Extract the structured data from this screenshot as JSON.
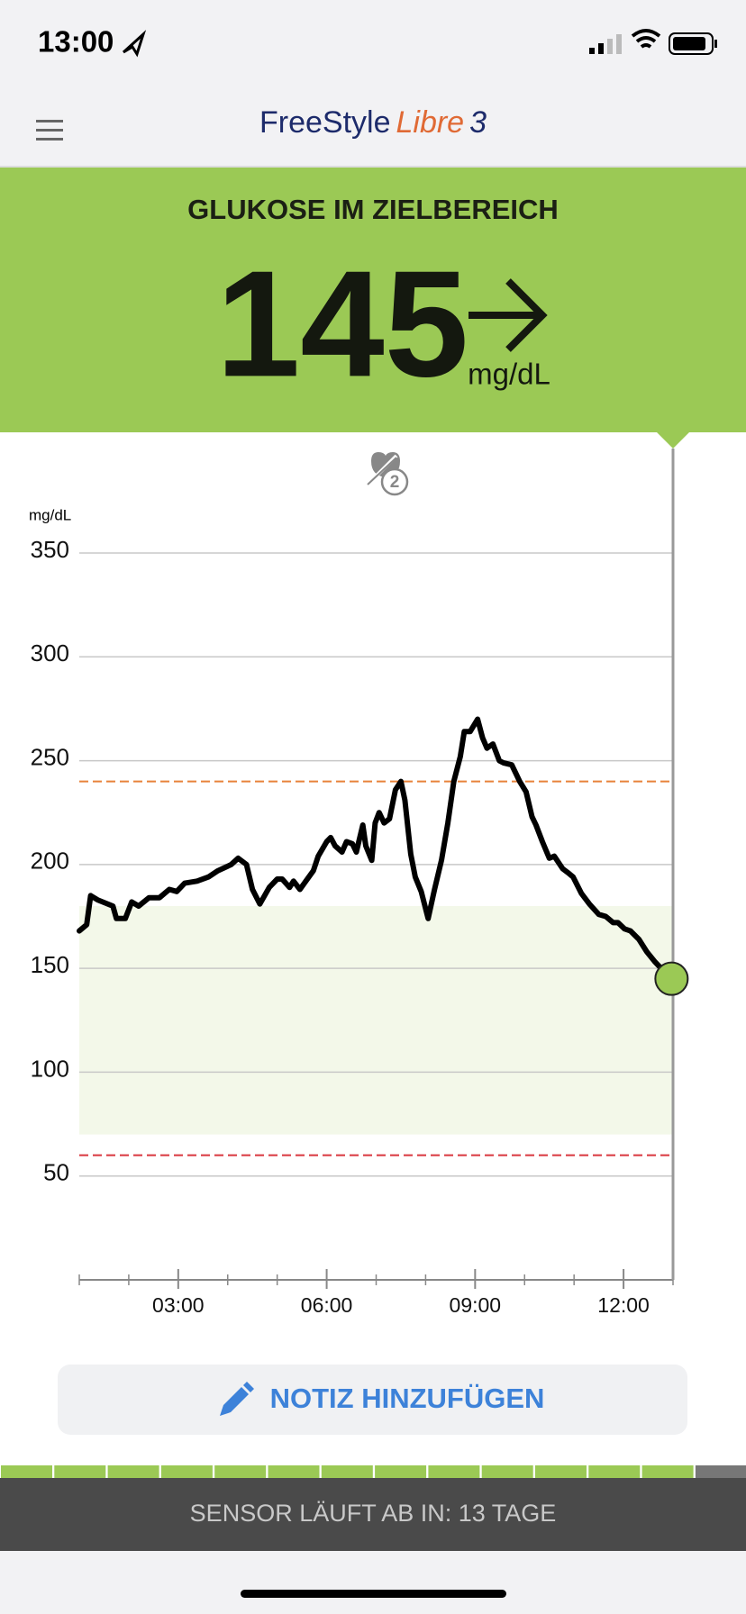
{
  "status_bar": {
    "time": "13:00"
  },
  "header": {
    "logo_brand": "FreeStyle",
    "logo_product": "Libre",
    "logo_version": "3"
  },
  "banner": {
    "status": "GLUKOSE IM ZIELBEREICH",
    "value": 145,
    "unit": "mg/dL"
  },
  "chart": {
    "type": "line",
    "y_axis_label": "mg/dL",
    "color": "#000000",
    "x": [
      1.0,
      1.15,
      1.23,
      1.37,
      1.68,
      1.75,
      1.93,
      2.06,
      2.2,
      2.41,
      2.62,
      2.82,
      2.97,
      3.13,
      3.38,
      3.61,
      3.8,
      4.07,
      4.21,
      4.38,
      4.5,
      4.65,
      4.84,
      5.0,
      5.1,
      5.25,
      5.33,
      5.46,
      5.58,
      5.73,
      5.83,
      6.0,
      6.08,
      6.17,
      6.31,
      6.4,
      6.52,
      6.6,
      6.73,
      6.79,
      6.91,
      6.98,
      7.06,
      7.16,
      7.27,
      7.39,
      7.5,
      7.58,
      7.7,
      7.79,
      7.91,
      8.05,
      8.18,
      8.32,
      8.45,
      8.57,
      8.7,
      8.78,
      8.9,
      9.05,
      9.15,
      9.24,
      9.36,
      9.49,
      9.57,
      9.74,
      9.9,
      10.03,
      10.15,
      10.23,
      10.36,
      10.5,
      10.6,
      10.77,
      10.88,
      10.98,
      11.15,
      11.31,
      11.5,
      11.64,
      11.79,
      11.89,
      12.02,
      12.14,
      12.31,
      12.47,
      12.64,
      12.8,
      12.97
    ],
    "values": [
      168,
      171,
      185,
      183,
      180,
      174,
      174,
      182,
      180,
      184,
      184,
      188,
      187,
      191,
      192,
      194,
      197,
      200,
      203,
      200,
      188,
      181,
      189,
      193,
      193,
      189,
      192,
      188,
      192,
      197,
      204,
      211,
      213,
      209,
      206,
      211,
      210,
      206,
      219,
      209,
      202,
      220,
      225,
      220,
      222,
      236,
      240,
      231,
      205,
      194,
      187,
      174,
      188,
      202,
      220,
      240,
      252,
      264,
      264,
      270,
      261,
      256,
      258,
      250,
      249,
      248,
      240,
      235,
      223,
      219,
      211,
      203,
      204,
      198,
      196,
      194,
      186,
      181,
      176,
      175,
      172,
      172,
      169,
      168,
      164,
      158,
      153,
      149,
      145
    ],
    "xlim": [
      1,
      13
    ],
    "ylim": [
      0,
      350
    ],
    "yticks": [
      50,
      100,
      150,
      200,
      250,
      300,
      350
    ],
    "xticks": [
      {
        "value": 3,
        "label": "03:00"
      },
      {
        "value": 6,
        "label": "06:00"
      },
      {
        "value": 9,
        "label": "09:00"
      },
      {
        "value": 12,
        "label": "12:00"
      }
    ],
    "minor_xticks": [
      1,
      2,
      4,
      5,
      7,
      8,
      10,
      11,
      13
    ],
    "target_range": [
      70,
      180
    ],
    "high_threshold": 240,
    "low_threshold": 60,
    "note_count": 2
  },
  "button": {
    "label": "NOTIZ HINZUFÜGEN"
  },
  "footer": {
    "sensor_status": "SENSOR LÄUFT AB IN: 13 TAGE"
  }
}
